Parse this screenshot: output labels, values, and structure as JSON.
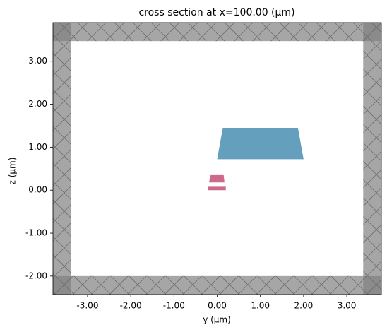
{
  "chart_data": {
    "type": "cross-section",
    "title": "cross section at x=100.00 (μm)",
    "x_label": "y (μm)",
    "y_label": "z (μm)",
    "xlim": [
      -3.8,
      3.8
    ],
    "ylim": [
      -2.43,
      3.9
    ],
    "xticks": [
      {
        "value": -3,
        "label": "-3.00"
      },
      {
        "value": -2,
        "label": "-2.00"
      },
      {
        "value": -1,
        "label": "-1.00"
      },
      {
        "value": 0,
        "label": "0.00"
      },
      {
        "value": 1,
        "label": "1.00"
      },
      {
        "value": 2,
        "label": "2.00"
      },
      {
        "value": 3,
        "label": "3.00"
      }
    ],
    "yticks": [
      {
        "value": -2,
        "label": "-2.00"
      },
      {
        "value": -1,
        "label": "-1.00"
      },
      {
        "value": 0,
        "label": "0.00"
      },
      {
        "value": 1,
        "label": "1.00"
      },
      {
        "value": 2,
        "label": "2.00"
      },
      {
        "value": 3,
        "label": "3.00"
      }
    ],
    "boundary_color": "#808080",
    "boundaries": [
      {
        "x": [
          -3.8,
          -3.38
        ],
        "y": [
          -2.43,
          3.9
        ]
      },
      {
        "x": [
          3.38,
          3.8
        ],
        "y": [
          -2.43,
          3.9
        ]
      },
      {
        "x": [
          -3.8,
          3.8
        ],
        "y": [
          3.47,
          3.9
        ]
      },
      {
        "x": [
          -3.8,
          3.8
        ],
        "y": [
          -2.43,
          -2.0
        ]
      }
    ],
    "structures": [
      {
        "color": "#659fbe",
        "x": [
          0.0,
          2.0,
          1.87,
          0.13
        ],
        "y": [
          0.72,
          0.72,
          1.45,
          1.45
        ]
      },
      {
        "color": "#cc6a8c",
        "x": [
          -0.19,
          0.17,
          0.15,
          -0.15
        ],
        "y": [
          0.18,
          0.18,
          0.35,
          0.35
        ]
      },
      {
        "color": "#cc6a8c",
        "x": [
          -0.22,
          0.2,
          0.2,
          -0.22
        ],
        "y": [
          0.0,
          0.0,
          0.08,
          0.08
        ]
      }
    ]
  }
}
